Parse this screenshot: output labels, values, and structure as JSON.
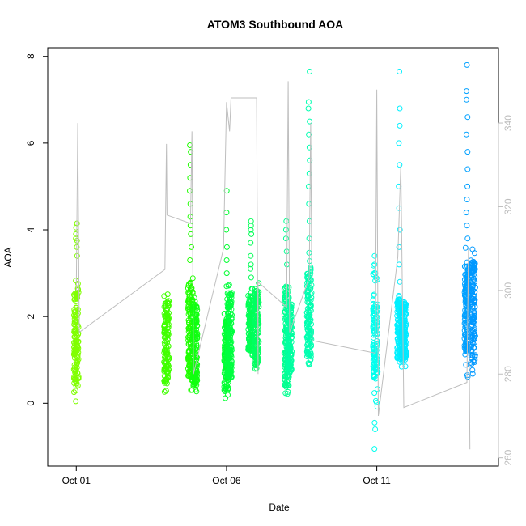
{
  "chart_data": {
    "type": "scatter",
    "title": "ATOM3 Southbound AOA",
    "xlabel": "Date",
    "ylabel": "AOA",
    "x_ticks": [
      "Oct 01",
      "Oct 06",
      "Oct 11"
    ],
    "x_tick_days": [
      1,
      6,
      11
    ],
    "xlim_days": [
      0.05,
      15.05
    ],
    "ylim": [
      -1.45,
      8.2
    ],
    "y_ticks": [
      0,
      2,
      4,
      6,
      8
    ],
    "y2_ticks": [
      260,
      280,
      300,
      320,
      340
    ],
    "y2lim": [
      258,
      358
    ],
    "grid": false,
    "point_clusters": [
      {
        "day": 1.0,
        "ymin": -0.3,
        "ymax": 3.0,
        "dense_min": 0.4,
        "dense_max": 2.7,
        "outliers": [
          3.4,
          3.6,
          3.75,
          3.8,
          3.9,
          4.05,
          4.15
        ],
        "color": "#80ff00"
      },
      {
        "day": 4.0,
        "ymin": 0.25,
        "ymax": 2.55,
        "dense_min": 0.5,
        "dense_max": 2.4,
        "outliers": [],
        "color": "#40ff00"
      },
      {
        "day": 4.8,
        "ymin": 0.3,
        "ymax": 3.0,
        "dense_min": 0.6,
        "dense_max": 2.8,
        "outliers": [
          3.3,
          3.6,
          3.9,
          4.1,
          4.3,
          4.6,
          4.9,
          5.2,
          5.5,
          5.8,
          5.95
        ],
        "color": "#20ff00"
      },
      {
        "day": 4.95,
        "ymin": 0.2,
        "ymax": 2.5,
        "dense_min": 0.4,
        "dense_max": 2.3,
        "outliers": [],
        "color": "#10ff10"
      },
      {
        "day": 6.0,
        "ymin": 0.1,
        "ymax": 2.1,
        "dense_min": 0.3,
        "dense_max": 1.9,
        "outliers": [
          2.4,
          2.7,
          3.0,
          3.3,
          3.6,
          4.0,
          4.4,
          4.9
        ],
        "color": "#00ff30"
      },
      {
        "day": 6.1,
        "ymin": 0.3,
        "ymax": 2.8,
        "dense_min": 0.6,
        "dense_max": 2.6,
        "outliers": [],
        "color": "#00ff40"
      },
      {
        "day": 6.8,
        "ymin": 1.0,
        "ymax": 2.7,
        "dense_min": 1.2,
        "dense_max": 2.5,
        "outliers": [
          2.9,
          3.1,
          3.2,
          3.4,
          3.7,
          3.9,
          4.0,
          4.1,
          4.2
        ],
        "color": "#00ff55"
      },
      {
        "day": 7.0,
        "ymin": 0.7,
        "ymax": 2.8,
        "dense_min": 0.9,
        "dense_max": 2.6,
        "outliers": [],
        "color": "#00ff60"
      },
      {
        "day": 8.0,
        "ymin": 0.1,
        "ymax": 2.9,
        "dense_min": 0.4,
        "dense_max": 2.7,
        "outliers": [
          3.2,
          3.5,
          3.8,
          4.0,
          4.2
        ],
        "color": "#00ff90"
      },
      {
        "day": 8.1,
        "ymin": 0.5,
        "ymax": 2.5,
        "dense_min": 0.7,
        "dense_max": 2.3,
        "outliers": [],
        "color": "#00ffa0"
      },
      {
        "day": 8.75,
        "ymin": 0.8,
        "ymax": 3.5,
        "dense_min": 1.0,
        "dense_max": 3.0,
        "outliers": [
          3.8,
          4.2,
          4.6,
          5.0,
          5.3,
          5.6,
          5.9,
          6.2,
          6.5,
          6.8,
          6.95,
          7.65
        ],
        "color": "#00ffb0"
      },
      {
        "day": 10.95,
        "ymin": -0.1,
        "ymax": 3.5,
        "dense_min": 0.6,
        "dense_max": 2.3,
        "outliers": [
          -0.45,
          -0.6,
          -1.05,
          3.0,
          3.2,
          3.4
        ],
        "color": "#00ffee"
      },
      {
        "day": 11.75,
        "ymin": 0.8,
        "ymax": 2.5,
        "dense_min": 1.0,
        "dense_max": 2.4,
        "outliers": [
          2.8,
          3.2,
          3.6,
          4.0,
          4.5,
          5.0,
          5.5,
          6.0,
          6.4,
          6.8,
          7.65
        ],
        "color": "#00f0ff"
      },
      {
        "day": 11.9,
        "ymin": 0.8,
        "ymax": 2.4,
        "dense_min": 1.0,
        "dense_max": 2.3,
        "outliers": [],
        "color": "#00e8ff"
      },
      {
        "day": 14.0,
        "ymin": 0.6,
        "ymax": 3.6,
        "dense_min": 1.2,
        "dense_max": 3.2,
        "outliers": [
          3.8,
          4.1,
          4.4,
          4.7,
          5.0,
          5.4,
          5.8,
          6.2,
          6.6,
          7.0,
          7.2,
          7.8
        ],
        "color": "#00a0ff"
      },
      {
        "day": 14.2,
        "ymin": 0.6,
        "ymax": 3.6,
        "dense_min": 0.9,
        "dense_max": 3.3,
        "outliers": [],
        "color": "#0098ff"
      }
    ],
    "gray_line": {
      "axis": "right",
      "color": "#bebebe",
      "points": [
        {
          "day": 1.0,
          "v": 300
        },
        {
          "day": 1.05,
          "v": 340
        },
        {
          "day": 1.1,
          "v": 290
        },
        {
          "day": 3.95,
          "v": 305
        },
        {
          "day": 4.0,
          "v": 335
        },
        {
          "day": 4.02,
          "v": 318
        },
        {
          "day": 4.8,
          "v": 316
        },
        {
          "day": 4.85,
          "v": 338
        },
        {
          "day": 4.9,
          "v": 280
        },
        {
          "day": 5.9,
          "v": 310
        },
        {
          "day": 6.0,
          "v": 345
        },
        {
          "day": 6.1,
          "v": 338
        },
        {
          "day": 6.15,
          "v": 346
        },
        {
          "day": 7.0,
          "v": 346
        },
        {
          "day": 7.05,
          "v": 280
        },
        {
          "day": 7.05,
          "v": 302
        },
        {
          "day": 8.0,
          "v": 296
        },
        {
          "day": 8.05,
          "v": 350
        },
        {
          "day": 8.1,
          "v": 290
        },
        {
          "day": 8.75,
          "v": 303
        },
        {
          "day": 8.8,
          "v": 340
        },
        {
          "day": 8.85,
          "v": 288
        },
        {
          "day": 10.95,
          "v": 285
        },
        {
          "day": 11.0,
          "v": 348
        },
        {
          "day": 11.05,
          "v": 270
        },
        {
          "day": 11.7,
          "v": 308
        },
        {
          "day": 11.8,
          "v": 330
        },
        {
          "day": 11.9,
          "v": 272
        },
        {
          "day": 14.0,
          "v": 278
        },
        {
          "day": 14.05,
          "v": 310
        },
        {
          "day": 14.1,
          "v": 262
        }
      ]
    }
  }
}
